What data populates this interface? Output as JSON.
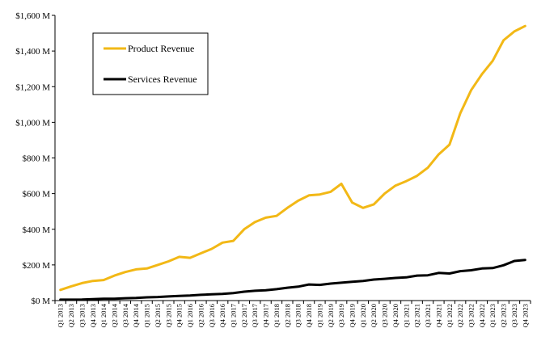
{
  "chart_data": {
    "type": "line",
    "title": "",
    "xlabel": "",
    "ylabel": "",
    "ylim": [
      0,
      1600
    ],
    "y_ticks": [
      0,
      200,
      400,
      600,
      800,
      1000,
      1200,
      1400,
      1600
    ],
    "y_tick_labels": [
      "$0 M",
      "$200 M",
      "$400 M",
      "$600 M",
      "$800 M",
      "$1,000 M",
      "$1,200 M",
      "$1,400 M",
      "$1,600 M"
    ],
    "grid": false,
    "legend_position": "top-left",
    "categories": [
      "Q1 2013",
      "Q2 2013",
      "Q3 2013",
      "Q4 2013",
      "Q1 2014",
      "Q2 2014",
      "Q3 2014",
      "Q4 2014",
      "Q1 2015",
      "Q2 2015",
      "Q3 2015",
      "Q4 2015",
      "Q1 2016",
      "Q2 2016",
      "Q3 2016",
      "Q4 2016",
      "Q1 2017",
      "Q2 2017",
      "Q3 2017",
      "Q4 2017",
      "Q1 2018",
      "Q2 2018",
      "Q3 2018",
      "Q4 2018",
      "Q1 2019",
      "Q2 2019",
      "Q3 2019",
      "Q4 2019",
      "Q1 2020",
      "Q2 2020",
      "Q3 2020",
      "Q4 2020",
      "Q1 2021",
      "Q2 2021",
      "Q3 2021",
      "Q4 2021",
      "Q1 2022",
      "Q2 2022",
      "Q3 2022",
      "Q4 2022",
      "Q1 2023",
      "Q2 2023",
      "Q3 2023",
      "Q4 2023"
    ],
    "series": [
      {
        "name": "Product Revenue",
        "color": "#F2B816",
        "values": [
          60,
          80,
          98,
          110,
          115,
          140,
          160,
          175,
          180,
          200,
          220,
          245,
          240,
          265,
          290,
          325,
          335,
          400,
          440,
          465,
          475,
          520,
          560,
          590,
          595,
          610,
          655,
          550,
          520,
          540,
          600,
          645,
          670,
          700,
          745,
          820,
          875,
          1050,
          1180,
          1270,
          1345,
          1460,
          1510,
          1540
        ]
      },
      {
        "name": "Services Revenue",
        "color": "#000000",
        "values": [
          5,
          5,
          6,
          8,
          10,
          10,
          13,
          15,
          18,
          20,
          23,
          26,
          28,
          32,
          35,
          37,
          42,
          50,
          55,
          58,
          64,
          72,
          78,
          90,
          88,
          95,
          100,
          105,
          110,
          118,
          122,
          127,
          130,
          140,
          142,
          155,
          152,
          165,
          170,
          180,
          182,
          198,
          222,
          228
        ]
      }
    ]
  }
}
